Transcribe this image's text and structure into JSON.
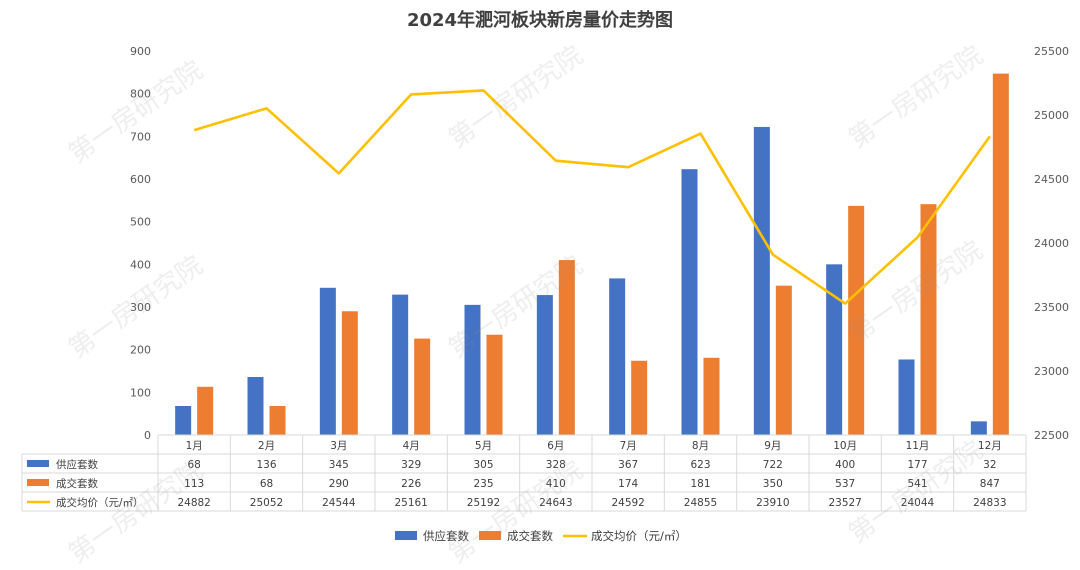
{
  "chart_data": {
    "type": "bar",
    "title": "2024年淝河板块新房量价走势图",
    "categories": [
      "1月",
      "2月",
      "3月",
      "4月",
      "5月",
      "6月",
      "7月",
      "8月",
      "9月",
      "10月",
      "11月",
      "12月"
    ],
    "series": [
      {
        "name": "供应套数",
        "kind": "bar",
        "axis": "left",
        "color": "#4472C4",
        "values": [
          68,
          136,
          345,
          329,
          305,
          328,
          367,
          623,
          722,
          400,
          177,
          32
        ]
      },
      {
        "name": "成交套数",
        "kind": "bar",
        "axis": "left",
        "color": "#ED7D31",
        "values": [
          113,
          68,
          290,
          226,
          235,
          410,
          174,
          181,
          350,
          537,
          541,
          847
        ]
      },
      {
        "name": "成交均价（元/㎡）",
        "kind": "line",
        "axis": "right",
        "color": "#FFC000",
        "values": [
          24882,
          25052,
          24544,
          25161,
          25192,
          24643,
          24592,
          24855,
          23910,
          23527,
          24044,
          24833
        ]
      }
    ],
    "table_values": [
      [
        "68",
        "136",
        "345",
        "329",
        "305",
        "328",
        "367",
        "623",
        "722",
        "400",
        "177",
        "32"
      ],
      [
        "113",
        "68",
        "290",
        "226",
        "235",
        "410",
        "174",
        "181",
        "350",
        "537",
        "541",
        "847"
      ],
      [
        "24882",
        "25052",
        "24544",
        "25161",
        "25192",
        "24643",
        "24592",
        "24855",
        "23910",
        "23527",
        "24044",
        "24833"
      ]
    ],
    "y_left": {
      "ticks": [
        "0",
        "100",
        "200",
        "300",
        "400",
        "500",
        "600",
        "700",
        "800",
        "900"
      ],
      "range": [
        0,
        900
      ]
    },
    "y_right": {
      "ticks": [
        "22500",
        "23000",
        "23500",
        "24000",
        "24500",
        "25000",
        "25500"
      ],
      "range": [
        22500,
        25500
      ]
    },
    "grid": false,
    "legend": "bottom-center",
    "data_table": true
  },
  "watermark": "第一房研究院"
}
